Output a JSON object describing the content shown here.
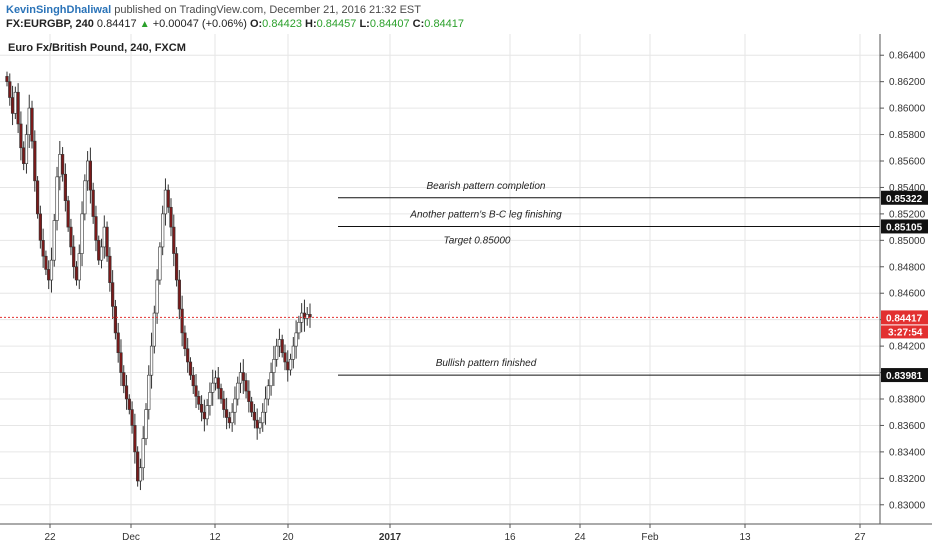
{
  "header": {
    "author": "KevinSinghDhaliwal",
    "published_text": "published on TradingView.com, December 21, 2016 21:32 EST",
    "symbol": "FX:EURGBP, 240",
    "last": "0.84417",
    "change": "+0.00047 (+0.06%)",
    "o_label": "O:",
    "o_value": "0.84423",
    "h_label": "H:",
    "h_value": "0.84457",
    "l_label": "L:",
    "l_value": "0.84407",
    "c_label": "C:",
    "c_value": "0.84417"
  },
  "chart_title": "Euro Fx/British Pound, 240, FXCM",
  "colors": {
    "up": "#ffffff",
    "down": "#7a1a1a",
    "wick": "#333333",
    "priceLine": "#e23030",
    "grid": "#e6e6e6"
  },
  "chart_data": {
    "type": "candlestick",
    "title": "Euro Fx/British Pound, 240, FXCM",
    "ylim": [
      0.829,
      0.865
    ],
    "y_ticks": [
      "0.86400",
      "0.86200",
      "0.86000",
      "0.85800",
      "0.85600",
      "0.85400",
      "0.85200",
      "0.85000",
      "0.84800",
      "0.84600",
      "0.84400",
      "0.84200",
      "0.84000",
      "0.83800",
      "0.83600",
      "0.83400",
      "0.83200",
      "0.83000"
    ],
    "x_ticks": [
      "22",
      "Dec",
      "12",
      "20",
      "2017",
      "16",
      "24",
      "Feb",
      "13",
      "27"
    ],
    "levels": [
      {
        "value": 0.85322,
        "label": "0.85322",
        "annotation": "Bearish pattern completion"
      },
      {
        "value": 0.85105,
        "label": "0.85105",
        "annotation": "Another pattern's B-C leg finishing"
      },
      {
        "value": 0.83981,
        "label": "0.83981",
        "annotation": "Bullish pattern finished"
      }
    ],
    "target_text": "Target 0.85000",
    "current_price": {
      "value": 0.84417,
      "label": "0.84417",
      "countdown": "3:27:54"
    },
    "close_path": [
      0.862,
      0.8608,
      0.8596,
      0.8612,
      0.8588,
      0.857,
      0.8558,
      0.858,
      0.86,
      0.8575,
      0.8545,
      0.852,
      0.85,
      0.8488,
      0.8478,
      0.847,
      0.8485,
      0.8515,
      0.8548,
      0.8565,
      0.855,
      0.853,
      0.851,
      0.8495,
      0.848,
      0.847,
      0.849,
      0.852,
      0.8545,
      0.856,
      0.8538,
      0.8518,
      0.85,
      0.8485,
      0.8495,
      0.851,
      0.8488,
      0.8468,
      0.845,
      0.843,
      0.8415,
      0.84,
      0.839,
      0.838,
      0.8372,
      0.836,
      0.834,
      0.8318,
      0.8328,
      0.835,
      0.8372,
      0.8398,
      0.842,
      0.8445,
      0.847,
      0.8495,
      0.852,
      0.8538,
      0.8525,
      0.851,
      0.849,
      0.847,
      0.8448,
      0.843,
      0.8418,
      0.8408,
      0.8398,
      0.839,
      0.8382,
      0.8376,
      0.837,
      0.8365,
      0.8375,
      0.8385,
      0.8392,
      0.8396,
      0.8388,
      0.838,
      0.8372,
      0.8366,
      0.8362,
      0.837,
      0.838,
      0.8392,
      0.84,
      0.8394,
      0.8386,
      0.8378,
      0.837,
      0.8364,
      0.8358,
      0.8362,
      0.837,
      0.838,
      0.839,
      0.84,
      0.841,
      0.842,
      0.8425,
      0.8415,
      0.8408,
      0.8402,
      0.841,
      0.842,
      0.843,
      0.8438,
      0.8445,
      0.8441,
      0.8444,
      0.8442
    ]
  }
}
